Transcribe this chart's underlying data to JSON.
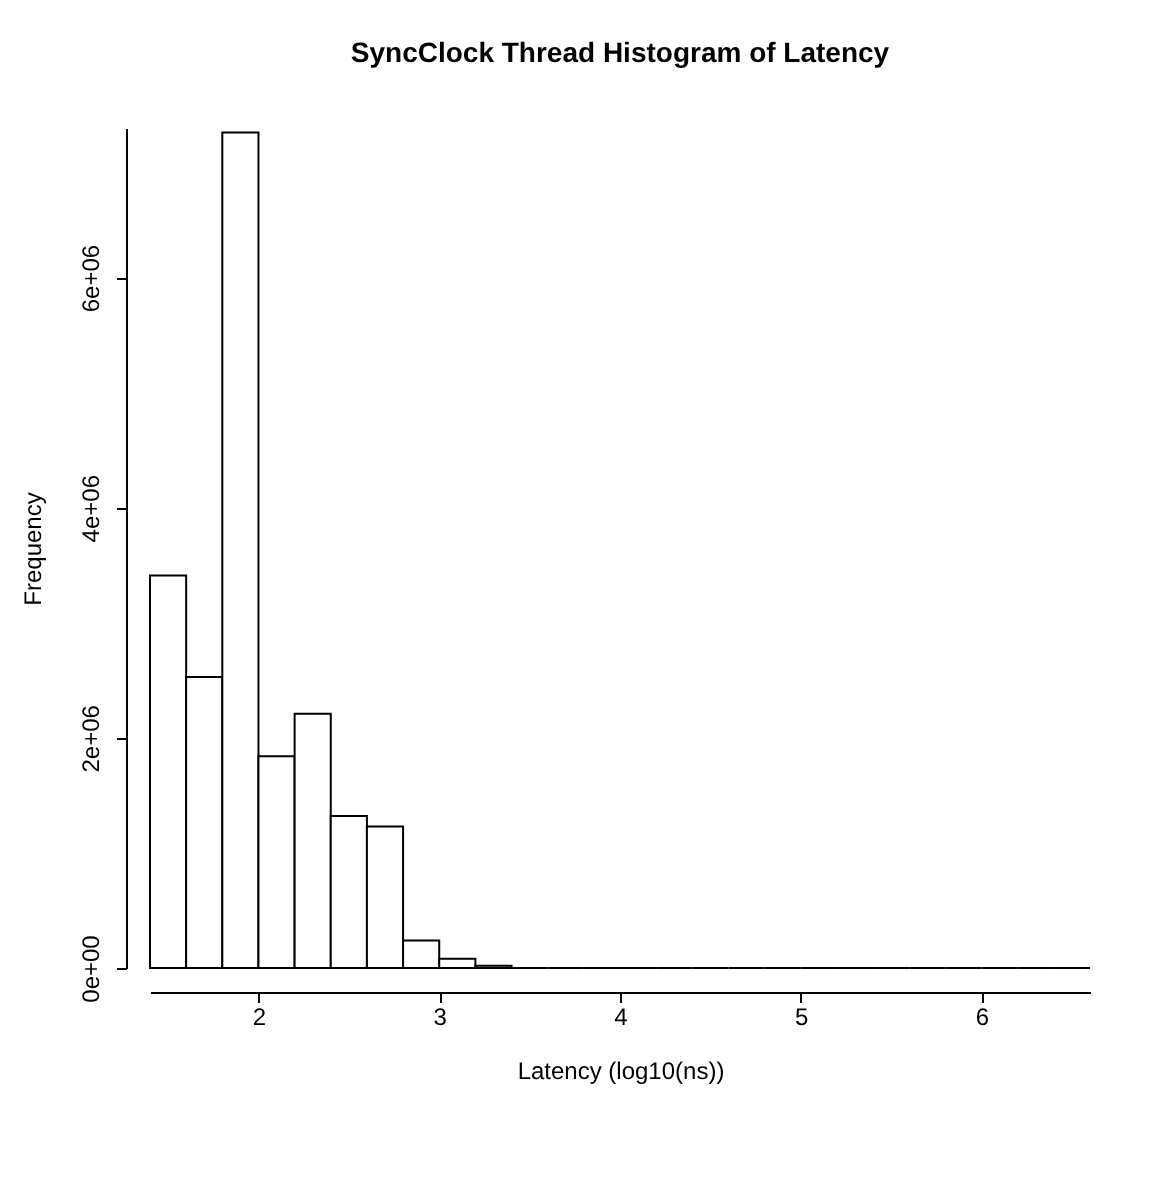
{
  "chart_data": {
    "type": "histogram",
    "title": "SyncClock Thread Histogram of Latency",
    "xlabel": "Latency (log10(ns))",
    "ylabel": "Frequency",
    "bins": [
      1.4,
      1.6,
      1.8,
      2.0,
      2.2,
      2.4,
      2.6,
      2.8,
      3.0,
      3.2,
      3.4,
      3.6,
      3.8,
      4.0,
      4.2,
      4.4,
      4.6,
      4.8,
      5.0,
      5.2,
      5.4,
      5.6,
      5.8,
      6.0,
      6.2,
      6.4,
      6.6
    ],
    "values": [
      3410000,
      2530000,
      7260000,
      1840000,
      2210000,
      1320000,
      1230000,
      240000,
      80000,
      20000,
      0,
      0,
      0,
      0,
      0,
      0,
      0,
      0,
      0,
      0,
      0,
      0,
      0,
      0,
      0,
      0
    ],
    "xlim": [
      1.4,
      6.6
    ],
    "xticks": [
      2,
      3,
      4,
      5,
      6
    ],
    "ylim": [
      0,
      7300000
    ],
    "yticks": [
      {
        "value": 0,
        "label": "0e+00"
      },
      {
        "value": 2000000,
        "label": "2e+06"
      },
      {
        "value": 4000000,
        "label": "4e+06"
      },
      {
        "value": 6000000,
        "label": "6e+06"
      }
    ],
    "grid": false
  }
}
